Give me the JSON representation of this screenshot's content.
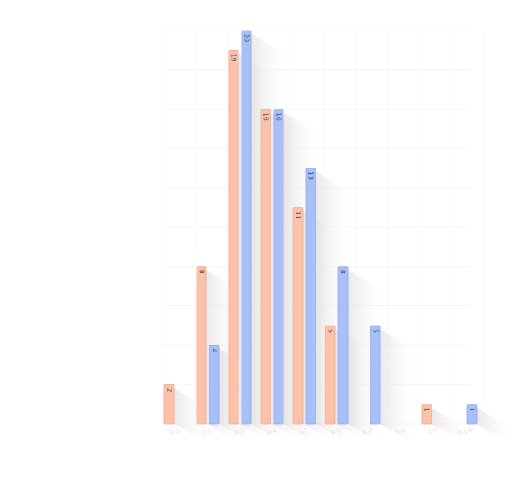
{
  "chart_data": {
    "type": "bar",
    "title": "",
    "xlabel": "",
    "ylabel": "",
    "ylim": [
      0,
      20
    ],
    "grid": true,
    "legend": "none",
    "colors": {
      "blue": "#a9bff7",
      "blue_edge": "#8ca6ee",
      "salmon": "#fbc2a9",
      "salmon_edge": "#eea88d"
    },
    "categories": [
      "0-1",
      "1-2",
      "2-3",
      "3-4",
      "4-5",
      "5-6",
      "6-7",
      "7-8",
      "8-9",
      "9-10"
    ],
    "series": [
      {
        "color": "salmon",
        "values": [
          2,
          8,
          19,
          16,
          11,
          5,
          null,
          null,
          1,
          null
        ]
      },
      {
        "color": "blue",
        "values": [
          null,
          4,
          20,
          16,
          13,
          8,
          5,
          null,
          null,
          1
        ]
      }
    ]
  }
}
